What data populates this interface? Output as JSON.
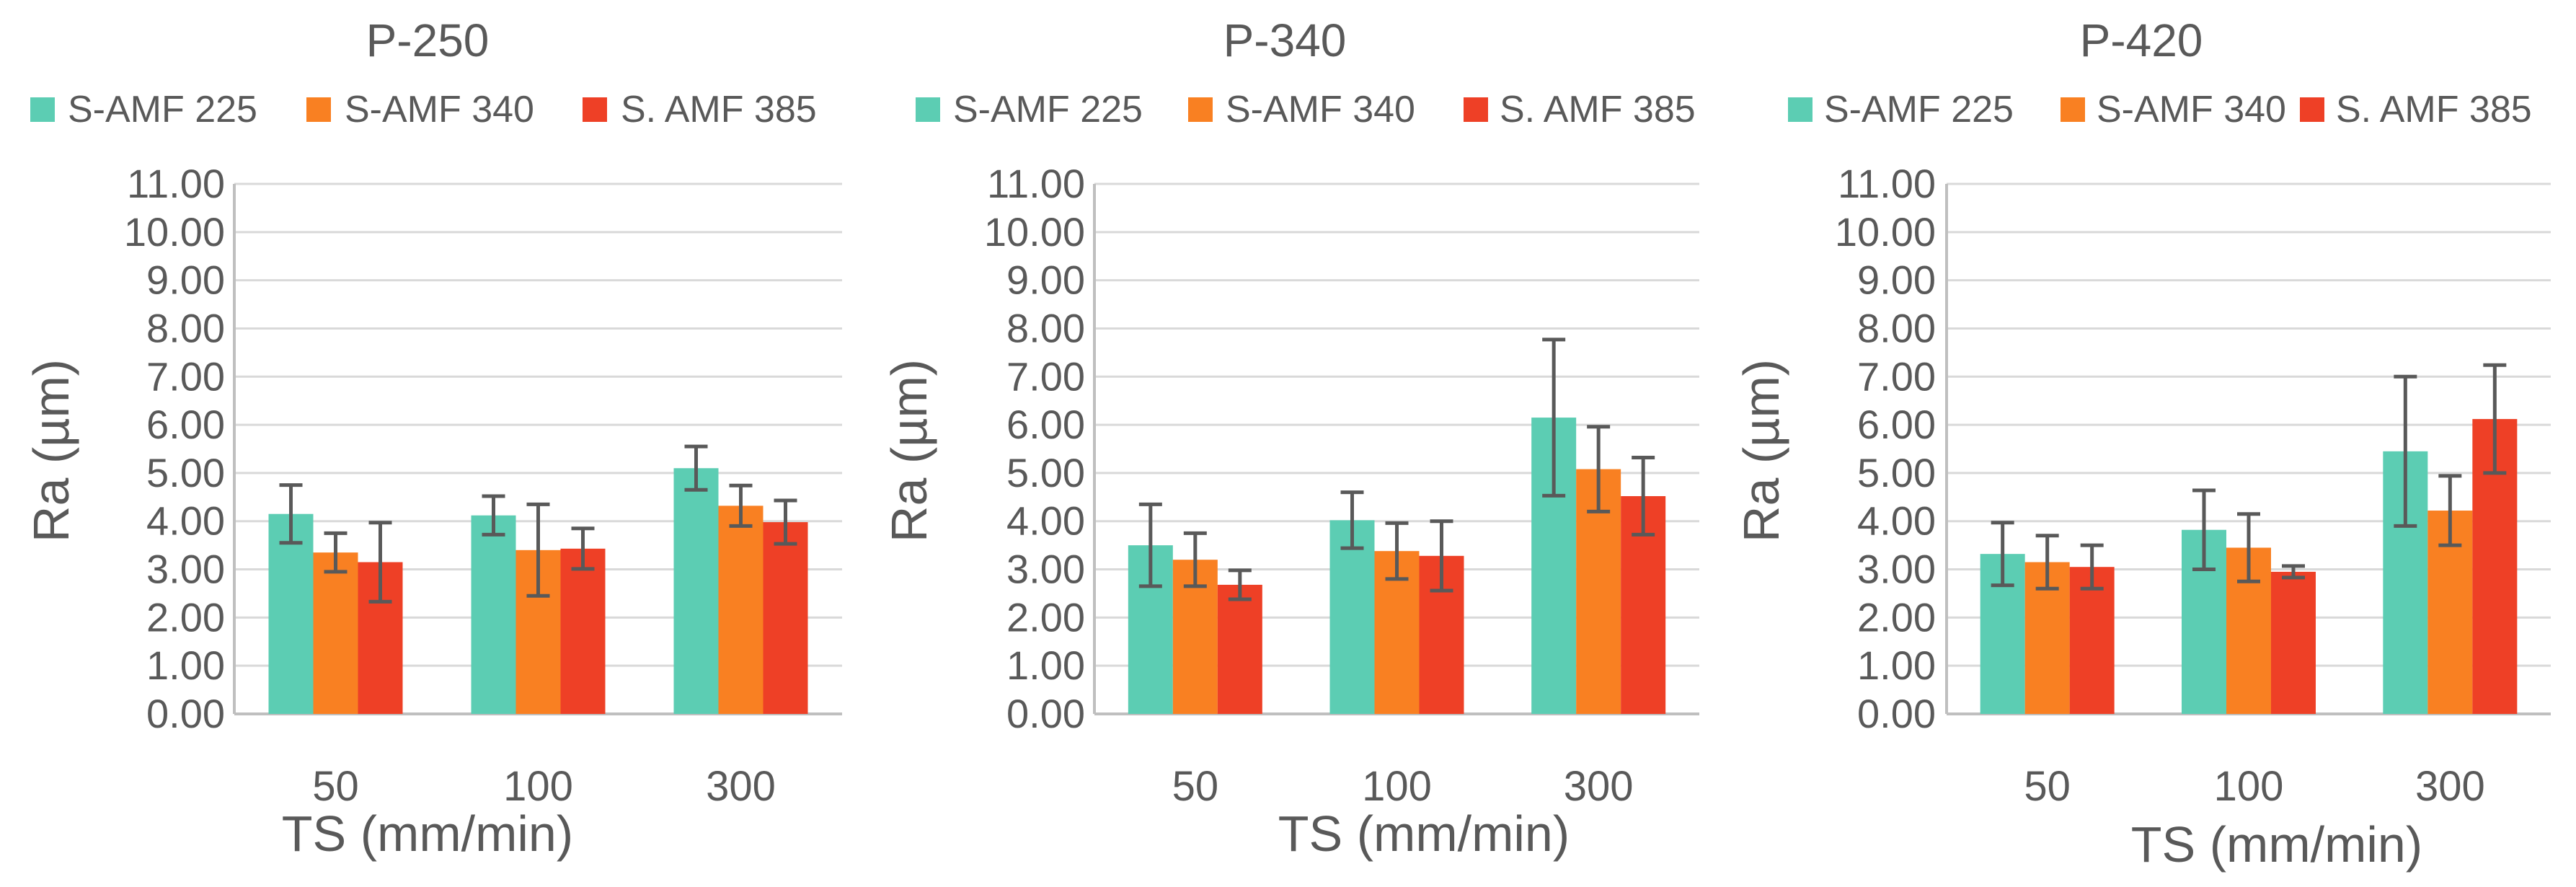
{
  "series_colors": [
    "#5ccdb3",
    "#f98022",
    "#ee4026"
  ],
  "chart_data": [
    {
      "type": "bar",
      "title": "P-250",
      "xlabel": "TS (mm/min)",
      "ylabel": "Ra (µm)",
      "ylim": [
        0,
        11
      ],
      "yticks": [
        "0.00",
        "1.00",
        "2.00",
        "3.00",
        "4.00",
        "5.00",
        "6.00",
        "7.00",
        "8.00",
        "9.00",
        "10.00",
        "11.00"
      ],
      "categories": [
        "50",
        "100",
        "300"
      ],
      "legend": [
        "S-AMF 225",
        "S-AMF 340",
        "S. AMF 385"
      ],
      "series": [
        {
          "name": "S-AMF 225",
          "values": [
            4.15,
            4.12,
            5.1
          ],
          "errors": [
            0.6,
            0.4,
            0.45
          ]
        },
        {
          "name": "S-AMF 340",
          "values": [
            3.35,
            3.4,
            4.32
          ],
          "errors": [
            0.4,
            0.95,
            0.42
          ]
        },
        {
          "name": "S. AMF 385",
          "values": [
            3.15,
            3.43,
            3.98
          ],
          "errors": [
            0.82,
            0.42,
            0.45
          ]
        }
      ]
    },
    {
      "type": "bar",
      "title": "P-340",
      "xlabel": "TS (mm/min)",
      "ylabel": "Ra (µm)",
      "ylim": [
        0,
        11
      ],
      "yticks": [
        "0.00",
        "1.00",
        "2.00",
        "3.00",
        "4.00",
        "5.00",
        "6.00",
        "7.00",
        "8.00",
        "9.00",
        "10.00",
        "11.00"
      ],
      "categories": [
        "50",
        "100",
        "300"
      ],
      "legend": [
        "S-AMF 225",
        "S-AMF 340",
        "S. AMF 385"
      ],
      "series": [
        {
          "name": "S-AMF 225",
          "values": [
            3.5,
            4.02,
            6.15
          ],
          "errors": [
            0.85,
            0.58,
            1.62
          ]
        },
        {
          "name": "S-AMF 340",
          "values": [
            3.2,
            3.38,
            5.08
          ],
          "errors": [
            0.55,
            0.58,
            0.88
          ]
        },
        {
          "name": "S. AMF 385",
          "values": [
            2.68,
            3.28,
            4.52
          ],
          "errors": [
            0.3,
            0.72,
            0.8
          ]
        }
      ]
    },
    {
      "type": "bar",
      "title": "P-420",
      "xlabel": "TS (mm/min)",
      "ylabel": "Ra (µm)",
      "ylim": [
        0,
        11
      ],
      "yticks": [
        "0.00",
        "1.00",
        "2.00",
        "3.00",
        "4.00",
        "5.00",
        "6.00",
        "7.00",
        "8.00",
        "9.00",
        "10.00",
        "11.00"
      ],
      "categories": [
        "50",
        "100",
        "300"
      ],
      "legend": [
        "S-AMF 225",
        "S-AMF 340",
        "S. AMF 385"
      ],
      "series": [
        {
          "name": "S-AMF 225",
          "values": [
            3.32,
            3.82,
            5.45
          ],
          "errors": [
            0.65,
            0.82,
            1.55
          ]
        },
        {
          "name": "S-AMF 340",
          "values": [
            3.15,
            3.45,
            4.22
          ],
          "errors": [
            0.55,
            0.7,
            0.72
          ]
        },
        {
          "name": "S. AMF 385",
          "values": [
            3.05,
            2.95,
            6.12
          ],
          "errors": [
            0.45,
            0.12,
            1.12
          ]
        }
      ]
    }
  ]
}
